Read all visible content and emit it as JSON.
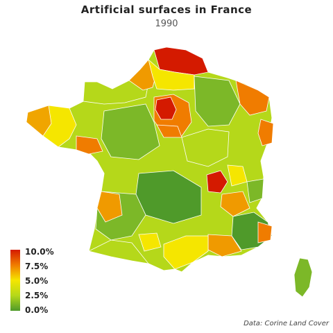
{
  "map": {
    "title": "Artificial surfaces in France",
    "subtitle": "1990",
    "source": "Data: Corine Land Cover",
    "legend": {
      "labels": [
        "10.0%",
        "7.5%",
        "5.0%",
        "2.5%",
        "0.0%"
      ],
      "colors": [
        "#d41a00",
        "#f07c00",
        "#f5e600",
        "#b5d81a",
        "#4f9a2a"
      ]
    },
    "regions_colors": {
      "nord": "#d41a00",
      "paris": "#d41a00",
      "lyon": "#d41a00",
      "orange": "#f09a00",
      "yellow": "#f5e600",
      "lime": "#b5d81a",
      "green": "#7cb828",
      "darkgreen": "#4f9a2a"
    }
  }
}
